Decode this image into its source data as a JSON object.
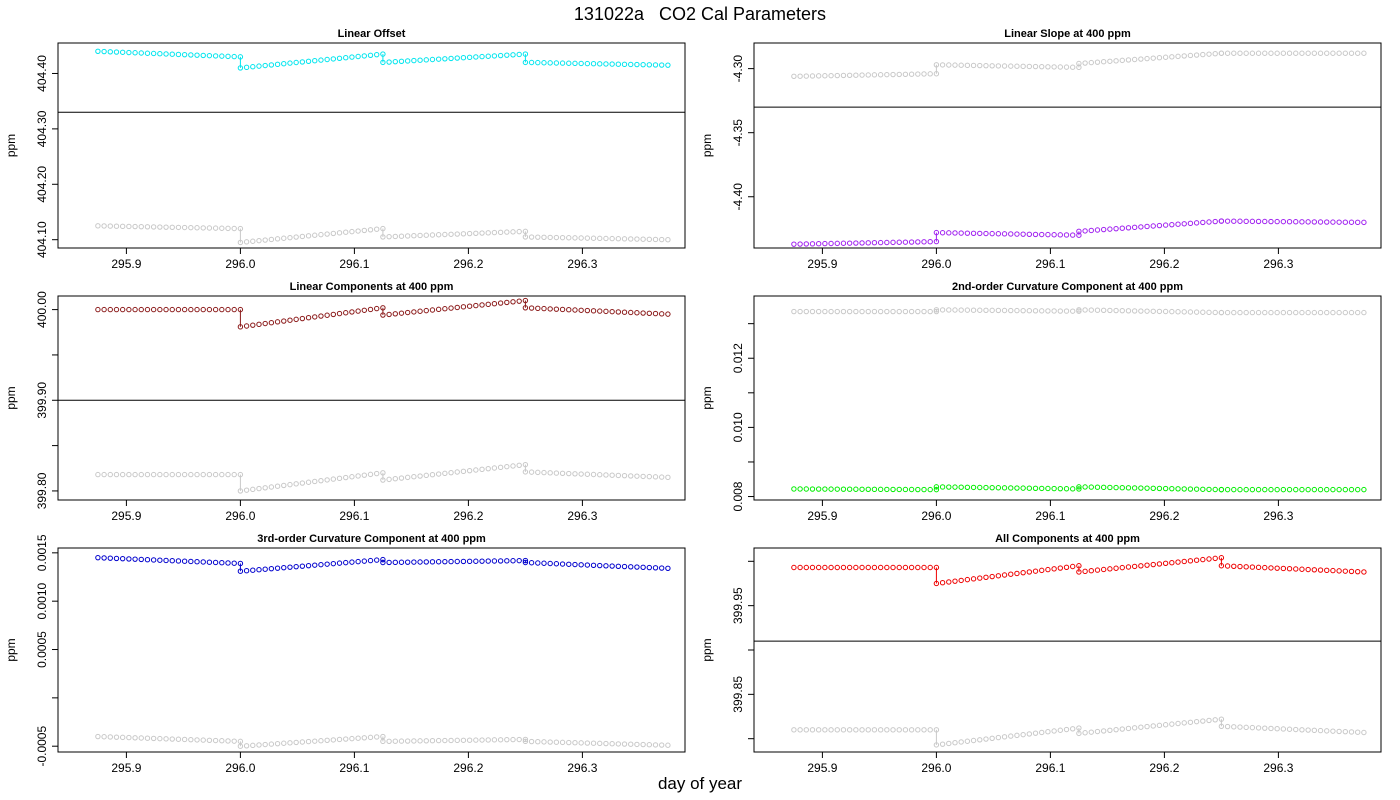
{
  "figure": {
    "title": "131022a   CO2 Cal Parameters",
    "xlabel": "day of year"
  },
  "chart_data": [
    {
      "type": "scatter",
      "title": "Linear Offset",
      "ylabel": "ppm",
      "xlim": [
        295.84,
        296.39
      ],
      "ylim": [
        404.085,
        404.455
      ],
      "x_ticks": [
        "295.9",
        "296.0",
        "296.1",
        "296.2",
        "296.3"
      ],
      "y_ticks": [
        "404.10",
        "404.20",
        "404.30",
        "404.40"
      ],
      "y_tick_values": [
        404.1,
        404.2,
        404.3,
        404.4
      ],
      "y_minor_ticks": [],
      "hline": 404.33,
      "segments": [
        {
          "x0": 295.875,
          "x1": 296.0,
          "n": 24,
          "main": [
            404.44,
            404.43
          ],
          "gray": [
            404.125,
            404.12
          ]
        },
        {
          "x0": 296.0,
          "x1": 296.125,
          "n": 24,
          "main": [
            404.41,
            404.435
          ],
          "gray": [
            404.095,
            404.12
          ]
        },
        {
          "x0": 296.125,
          "x1": 296.25,
          "n": 24,
          "main": [
            404.42,
            404.435
          ],
          "gray": [
            404.105,
            404.115
          ]
        },
        {
          "x0": 296.25,
          "x1": 296.375,
          "n": 24,
          "main": [
            404.42,
            404.415
          ],
          "gray": [
            404.105,
            404.1
          ]
        }
      ],
      "color": "#00e5ee",
      "gray_color": "#c8c8c8"
    },
    {
      "type": "scatter",
      "title": "Linear Slope at 400 ppm",
      "ylabel": "ppm",
      "xlim": [
        295.84,
        296.39
      ],
      "ylim": [
        -4.44,
        -4.28
      ],
      "x_ticks": [
        "295.9",
        "296.0",
        "296.1",
        "296.2",
        "296.3"
      ],
      "y_ticks": [
        "-4.40",
        "-4.35",
        "-4.30"
      ],
      "y_tick_values": [
        -4.4,
        -4.35,
        -4.3
      ],
      "y_minor_ticks": [],
      "hline": -4.33,
      "segments": [
        {
          "x0": 295.875,
          "x1": 296.0,
          "n": 24,
          "main": [
            -4.437,
            -4.435
          ],
          "gray": [
            -4.306,
            -4.304
          ]
        },
        {
          "x0": 296.0,
          "x1": 296.125,
          "n": 24,
          "main": [
            -4.428,
            -4.43
          ],
          "gray": [
            -4.297,
            -4.299
          ]
        },
        {
          "x0": 296.125,
          "x1": 296.25,
          "n": 24,
          "main": [
            -4.427,
            -4.419
          ],
          "gray": [
            -4.296,
            -4.288
          ]
        },
        {
          "x0": 296.25,
          "x1": 296.375,
          "n": 24,
          "main": [
            -4.419,
            -4.42
          ],
          "gray": [
            -4.288,
            -4.288
          ]
        }
      ],
      "color": "#a020f0",
      "gray_color": "#c8c8c8"
    },
    {
      "type": "scatter",
      "title": "Linear Components at 400 ppm",
      "ylabel": "ppm",
      "xlim": [
        295.84,
        296.39
      ],
      "ylim": [
        399.79,
        400.015
      ],
      "x_ticks": [
        "295.9",
        "296.0",
        "296.1",
        "296.2",
        "296.3"
      ],
      "y_ticks": [
        "399.80",
        "399.90",
        "400.00"
      ],
      "y_tick_values": [
        399.8,
        399.9,
        400.0
      ],
      "y_minor_ticks": [
        399.85,
        399.95
      ],
      "hline": 399.9,
      "segments": [
        {
          "x0": 295.875,
          "x1": 296.0,
          "n": 24,
          "main": [
            400.0,
            400.0
          ],
          "gray": [
            399.818,
            399.818
          ]
        },
        {
          "x0": 296.0,
          "x1": 296.125,
          "n": 24,
          "main": [
            399.981,
            400.002
          ],
          "gray": [
            399.8,
            399.82
          ]
        },
        {
          "x0": 296.125,
          "x1": 296.25,
          "n": 24,
          "main": [
            399.994,
            400.01
          ],
          "gray": [
            399.812,
            399.829
          ]
        },
        {
          "x0": 296.25,
          "x1": 296.375,
          "n": 24,
          "main": [
            400.002,
            399.995
          ],
          "gray": [
            399.821,
            399.815
          ]
        }
      ],
      "color": "#8b1a1a",
      "gray_color": "#c8c8c8"
    },
    {
      "type": "scatter",
      "title": "2nd-order Curvature Component at 400 ppm",
      "ylabel": "ppm",
      "xlim": [
        295.84,
        296.39
      ],
      "ylim": [
        0.0079,
        0.0138
      ],
      "x_ticks": [
        "295.9",
        "296.0",
        "296.1",
        "296.2",
        "296.3"
      ],
      "y_ticks": [
        "0.008",
        "0.010",
        "0.012"
      ],
      "y_tick_values": [
        0.008,
        0.01,
        0.012
      ],
      "y_minor_ticks": [
        0.009,
        0.011,
        0.013
      ],
      "hline": null,
      "segments": [
        {
          "x0": 295.875,
          "x1": 296.0,
          "n": 24,
          "main": [
            0.00822,
            0.0082
          ],
          "gray": [
            0.01335,
            0.01335
          ]
        },
        {
          "x0": 296.0,
          "x1": 296.125,
          "n": 24,
          "main": [
            0.00828,
            0.00822
          ],
          "gray": [
            0.0134,
            0.01336
          ]
        },
        {
          "x0": 296.125,
          "x1": 296.25,
          "n": 24,
          "main": [
            0.00828,
            0.0082
          ],
          "gray": [
            0.0134,
            0.01332
          ]
        },
        {
          "x0": 296.25,
          "x1": 296.375,
          "n": 24,
          "main": [
            0.0082,
            0.0082
          ],
          "gray": [
            0.01332,
            0.01332
          ]
        }
      ],
      "color": "#00ee00",
      "gray_color": "#c8c8c8"
    },
    {
      "type": "scatter",
      "title": "3rd-order Curvature Component at 400 ppm",
      "ylabel": "ppm",
      "xlim": [
        295.84,
        296.39
      ],
      "ylim": [
        -0.00056,
        0.00155
      ],
      "x_ticks": [
        "295.9",
        "296.0",
        "296.1",
        "296.2",
        "296.3"
      ],
      "y_ticks": [
        "-0.0005",
        "0.0005",
        "0.0010",
        "0.0015"
      ],
      "y_tick_values": [
        -0.0005,
        0.0005,
        0.001,
        0.0015
      ],
      "y_minor_ticks": [
        0.0
      ],
      "hline": null,
      "segments": [
        {
          "x0": 295.875,
          "x1": 296.0,
          "n": 24,
          "main": [
            0.00145,
            0.00139
          ],
          "gray": [
            -0.0004,
            -0.00045
          ]
        },
        {
          "x0": 296.0,
          "x1": 296.125,
          "n": 24,
          "main": [
            0.00131,
            0.00143
          ],
          "gray": [
            -0.0005,
            -0.0004
          ]
        },
        {
          "x0": 296.125,
          "x1": 296.25,
          "n": 24,
          "main": [
            0.0014,
            0.00142
          ],
          "gray": [
            -0.00045,
            -0.00043
          ]
        },
        {
          "x0": 296.25,
          "x1": 296.375,
          "n": 24,
          "main": [
            0.0014,
            0.00134
          ],
          "gray": [
            -0.00045,
            -0.00049
          ]
        }
      ],
      "color": "#0000cd",
      "gray_color": "#c8c8c8"
    },
    {
      "type": "scatter",
      "title": "All Components at 400 ppm",
      "ylabel": "ppm",
      "xlim": [
        295.84,
        296.39
      ],
      "ylim": [
        399.785,
        400.015
      ],
      "x_ticks": [
        "295.9",
        "296.0",
        "296.1",
        "296.2",
        "296.3"
      ],
      "y_ticks": [
        "399.85",
        "399.95"
      ],
      "y_tick_values": [
        399.85,
        399.95
      ],
      "y_minor_ticks": [
        399.8,
        399.9,
        400.0
      ],
      "hline": 399.91,
      "segments": [
        {
          "x0": 295.875,
          "x1": 296.0,
          "n": 24,
          "main": [
            399.993,
            399.993
          ],
          "gray": [
            399.81,
            399.81
          ]
        },
        {
          "x0": 296.0,
          "x1": 296.125,
          "n": 24,
          "main": [
            399.975,
            399.995
          ],
          "gray": [
            399.793,
            399.812
          ]
        },
        {
          "x0": 296.125,
          "x1": 296.25,
          "n": 24,
          "main": [
            399.988,
            400.004
          ],
          "gray": [
            399.806,
            399.822
          ]
        },
        {
          "x0": 296.25,
          "x1": 296.375,
          "n": 24,
          "main": [
            399.995,
            399.988
          ],
          "gray": [
            399.814,
            399.807
          ]
        }
      ],
      "color": "#ee0000",
      "gray_color": "#c8c8c8"
    }
  ]
}
